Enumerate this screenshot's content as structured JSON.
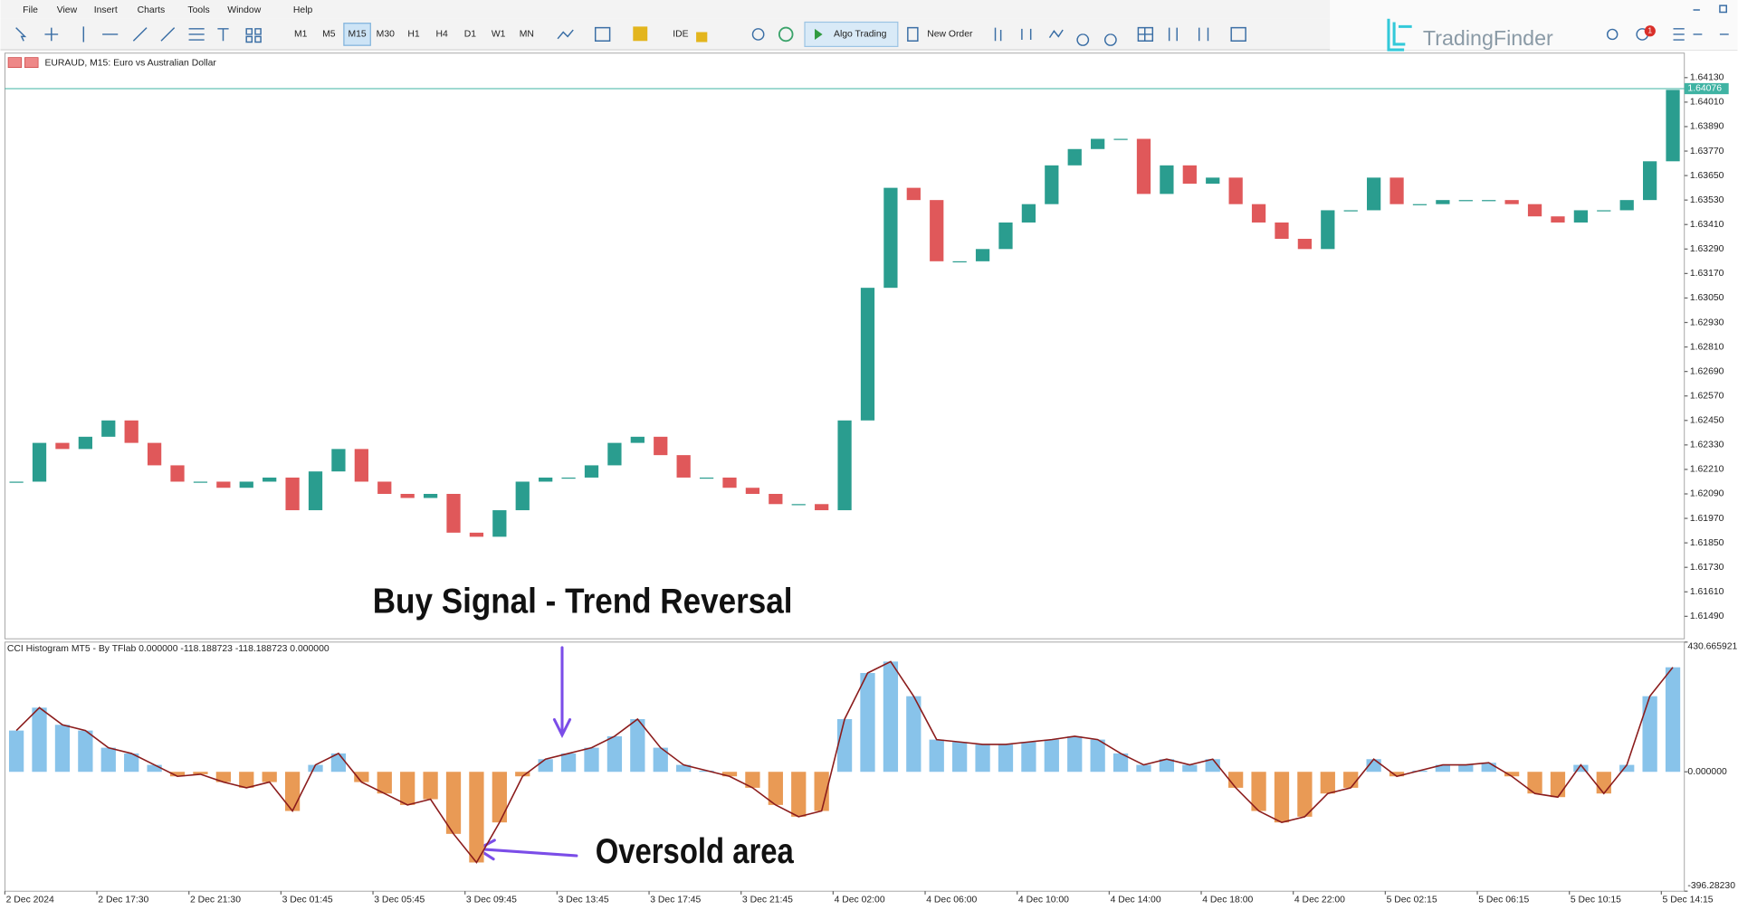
{
  "menu": [
    "File",
    "View",
    "Insert",
    "Charts",
    "Tools",
    "Window",
    "Help"
  ],
  "toolbar": {
    "timeframes": [
      "M1",
      "M5",
      "M15",
      "M30",
      "H1",
      "H4",
      "D1",
      "W1",
      "MN"
    ],
    "ide": "IDE",
    "algo_trading": "Algo Trading",
    "new_order": "New Order"
  },
  "watermark": "TradingFinder",
  "badge": "1",
  "chart_data": [
    {
      "type": "candlestick",
      "title": "EURAUD, M15:  Euro vs Australian Dollar",
      "annotation": "Buy Signal - Trend Reversal",
      "up_color": "#2a9d8f",
      "down_color": "#e0585a",
      "last_price_color": "#3fb3a3",
      "values": [
        1.6215,
        1.6234,
        1.6231,
        1.6237,
        1.6245,
        1.6234,
        1.6223,
        1.6215,
        1.6215,
        1.6212,
        1.6215,
        1.6217,
        1.6201,
        1.622,
        1.6231,
        1.6215,
        1.6209,
        1.6207,
        1.6209,
        1.619,
        1.6188,
        1.6201,
        1.6215,
        1.6217,
        1.6217,
        1.6223,
        1.6234,
        1.6237,
        1.6228,
        1.6217,
        1.6217,
        1.6212,
        1.6209,
        1.6204,
        1.6204,
        1.6201,
        1.6245,
        1.631,
        1.6359,
        1.6353,
        1.6323,
        1.6323,
        1.6329,
        1.6342,
        1.6351,
        1.637,
        1.6378,
        1.6383,
        1.6383,
        1.6356,
        1.637,
        1.6361,
        1.6364,
        1.6351,
        1.6342,
        1.6334,
        1.6329,
        1.6348,
        1.6348,
        1.6364,
        1.6351,
        1.6351,
        1.6353,
        1.6353,
        1.6353,
        1.6351,
        1.6345,
        1.6342,
        1.6348,
        1.6348,
        1.6353,
        1.6372,
        1.6407
      ],
      "last_price": 1.64076,
      "ylim": [
        1.6138,
        1.6425
      ],
      "yticks": [
        {
          "value": 1.6413,
          "label": "1.64130"
        },
        {
          "value": 1.6401,
          "label": "1.64010"
        },
        {
          "value": 1.6389,
          "label": "1.63890"
        },
        {
          "value": 1.6377,
          "label": "1.63770"
        },
        {
          "value": 1.6365,
          "label": "1.63650"
        },
        {
          "value": 1.6353,
          "label": "1.63530"
        },
        {
          "value": 1.6341,
          "label": "1.63410"
        },
        {
          "value": 1.6329,
          "label": "1.63290"
        },
        {
          "value": 1.6317,
          "label": "1.63170"
        },
        {
          "value": 1.6305,
          "label": "1.63050"
        },
        {
          "value": 1.6293,
          "label": "1.62930"
        },
        {
          "value": 1.6281,
          "label": "1.62810"
        },
        {
          "value": 1.6269,
          "label": "1.62690"
        },
        {
          "value": 1.6257,
          "label": "1.62570"
        },
        {
          "value": 1.6245,
          "label": "1.62450"
        },
        {
          "value": 1.6233,
          "label": "1.62330"
        },
        {
          "value": 1.6221,
          "label": "1.62210"
        },
        {
          "value": 1.6209,
          "label": "1.62090"
        },
        {
          "value": 1.6197,
          "label": "1.61970"
        },
        {
          "value": 1.6185,
          "label": "1.61850"
        },
        {
          "value": 1.6173,
          "label": "1.61730"
        },
        {
          "value": 1.6161,
          "label": "1.61610"
        },
        {
          "value": 1.6149,
          "label": "1.61490"
        }
      ]
    },
    {
      "type": "histogram",
      "title": "CCI Histogram MT5 - By TFlab 0.000000 -118.188723 -118.188723 0.000000",
      "annotation": "Oversold area",
      "positive_color": "#88c3ea",
      "negative_color": "#e99a55",
      "line_color": "#8b1c1c",
      "categories": [
        "2 Dec 2024",
        null,
        null,
        null,
        "2 Dec 17:30",
        null,
        null,
        null,
        "2 Dec 21:30",
        null,
        null,
        null,
        "3 Dec 01:45",
        null,
        null,
        null,
        "3 Dec 05:45",
        null,
        null,
        null,
        "3 Dec 09:45",
        null,
        null,
        null,
        "3 Dec 13:45",
        null,
        null,
        null,
        "3 Dec 17:45",
        null,
        null,
        null,
        "3 Dec 21:45",
        null,
        null,
        null,
        "4 Dec 02:00",
        null,
        null,
        null,
        "4 Dec 06:00",
        null,
        null,
        null,
        "4 Dec 10:00",
        null,
        null,
        null,
        "4 Dec 14:00",
        null,
        null,
        null,
        "4 Dec 18:00",
        null,
        null,
        null,
        "4 Dec 22:00",
        null,
        null,
        null,
        "5 Dec 02:15",
        null,
        null,
        null,
        "5 Dec 06:15",
        null,
        null,
        null,
        "5 Dec 10:15",
        null,
        null,
        null,
        "5 Dec 14:15"
      ],
      "values": [
        137,
        213,
        156,
        137,
        80,
        61,
        23,
        -15,
        -8,
        -34,
        -53,
        -34,
        -130,
        23,
        61,
        -34,
        -72,
        -110,
        -91,
        -206,
        -301,
        -168,
        -15,
        42,
        61,
        80,
        118,
        175,
        80,
        23,
        4,
        -15,
        -53,
        -110,
        -149,
        -130,
        175,
        328,
        366,
        251,
        107,
        99,
        91,
        91,
        99,
        107,
        118,
        107,
        61,
        23,
        42,
        23,
        42,
        -53,
        -130,
        -168,
        -149,
        -72,
        -53,
        42,
        -15,
        4,
        23,
        23,
        30,
        -15,
        -72,
        -84,
        23,
        -72,
        23,
        251,
        347
      ],
      "ylim": [
        -396.2823,
        430.665921
      ],
      "yticks": [
        {
          "value": 430.665921,
          "label": "430.665921"
        },
        {
          "value": 0,
          "label": "0.000000"
        },
        {
          "value": -396.2823,
          "label": "-396.28230"
        }
      ]
    }
  ]
}
